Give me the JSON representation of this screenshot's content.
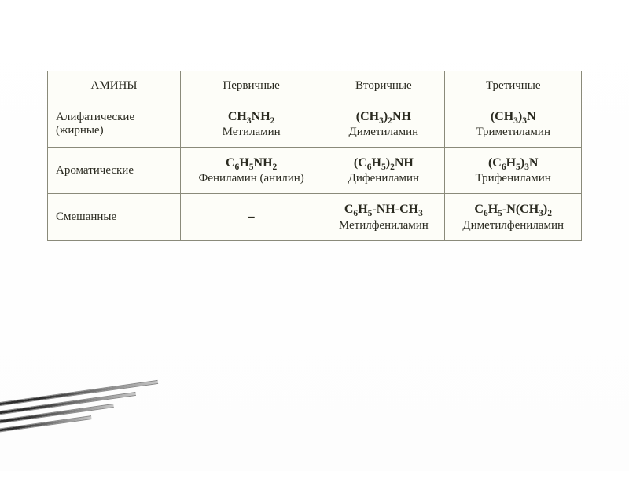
{
  "table": {
    "type": "table",
    "background_color": "#fdfdf8",
    "border_color": "#8a8a7a",
    "text_color": "#2a2a20",
    "header_fontsize": 15,
    "cell_fontsize": 15,
    "formula_fontsize": 16,
    "columns": [
      "АМИНЫ",
      "Первичные",
      "Вторичные",
      "Третичные"
    ],
    "rows": [
      {
        "label": "Алифатические (жирные)",
        "cells": [
          {
            "formula_html": "CH<sub>3</sub>NH<sub>2</sub>",
            "name": "Метиламин"
          },
          {
            "formula_html": "(CH<sub>3</sub>)<sub>2</sub>NH",
            "name": "Диметиламин"
          },
          {
            "formula_html": "(CH<sub>3</sub>)<sub>3</sub>N",
            "name": "Триметиламин"
          }
        ]
      },
      {
        "label": "Ароматические",
        "cells": [
          {
            "formula_html": "C<sub>6</sub>H<sub>5</sub>NH<sub>2</sub>",
            "name": "Фениламин (анилин)"
          },
          {
            "formula_html": "(C<sub>6</sub>H<sub>5</sub>)<sub>2</sub>NH",
            "name": "Дифениламин"
          },
          {
            "formula_html": "(C<sub>6</sub>H<sub>5</sub>)<sub>3</sub>N",
            "name": "Трифениламин"
          }
        ]
      },
      {
        "label": "Смешанные",
        "cells": [
          {
            "formula_html": "–",
            "name": ""
          },
          {
            "formula_html": "C<sub>6</sub>H<sub>5</sub>-NH-CH<sub>3</sub>",
            "name": "Метилфениламин"
          },
          {
            "formula_html": "C<sub>6</sub>H<sub>5</sub>-N(CH<sub>3</sub>)<sub>2</sub>",
            "name": "Диметилфениламин"
          }
        ]
      }
    ]
  },
  "corner_decoration": {
    "type": "infographic",
    "bar_count": 4,
    "bar_color_start": "#2e2e2e",
    "bar_color_end": "#c8c8c8",
    "rotation_deg": -8
  }
}
